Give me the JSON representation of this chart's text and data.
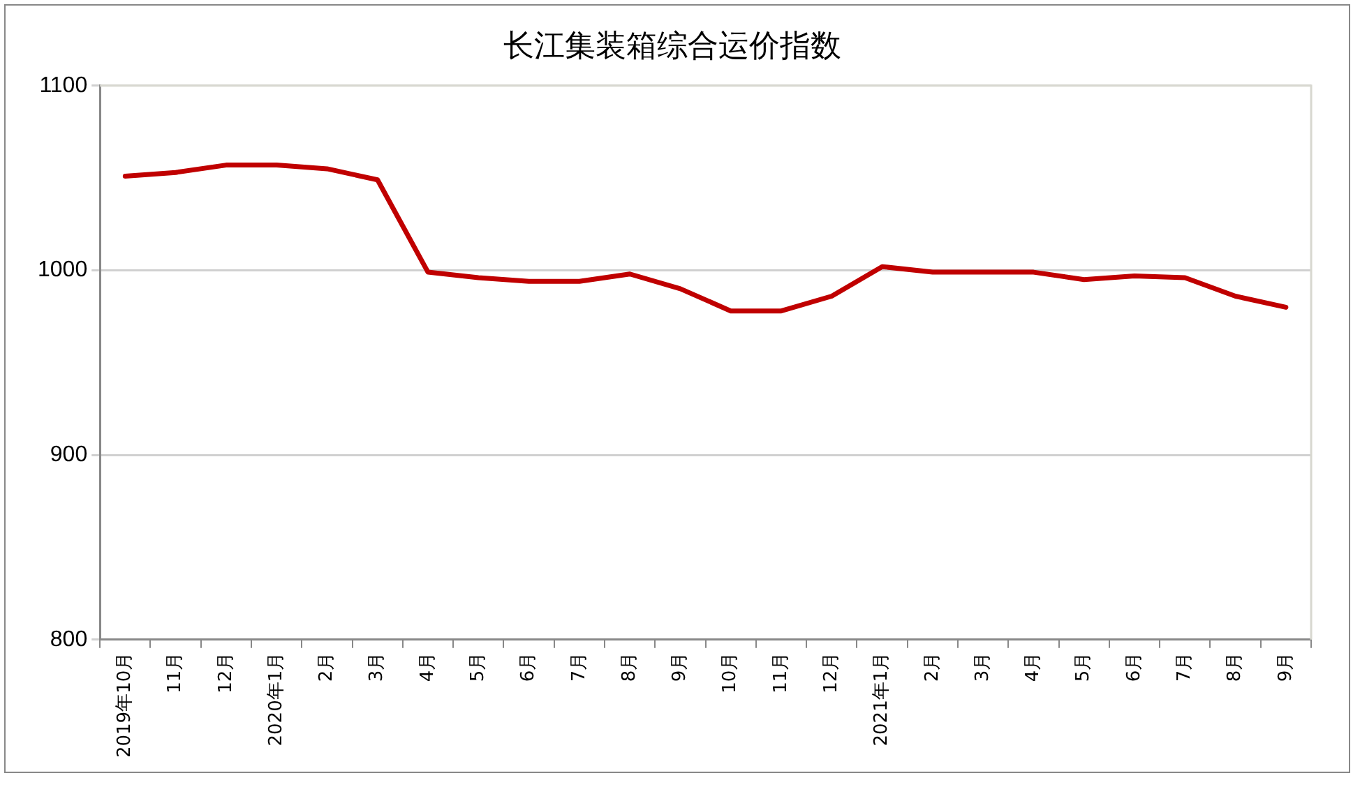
{
  "chart_data": {
    "type": "line",
    "title": "长江集装箱综合运价指数",
    "categories": [
      "2019年10月",
      "11月",
      "12月",
      "2020年1月",
      "2月",
      "3月",
      "4月",
      "5月",
      "6月",
      "7月",
      "8月",
      "9月",
      "10月",
      "11月",
      "12月",
      "2021年1月",
      "2月",
      "3月",
      "4月",
      "5月",
      "6月",
      "7月",
      "8月",
      "9月"
    ],
    "series": [
      {
        "color": "#c00000",
        "values": [
          1051,
          1053,
          1057,
          1057,
          1055,
          1049,
          999,
          996,
          994,
          994,
          998,
          990,
          978,
          978,
          986,
          1002,
          999,
          999,
          999,
          995,
          997,
          996,
          986,
          980
        ]
      }
    ],
    "ylim": [
      800,
      1100
    ],
    "yticks": [
      800,
      900,
      1000,
      1100
    ],
    "grid": "y",
    "legend": false,
    "marker": "none",
    "line_style": "solid"
  }
}
